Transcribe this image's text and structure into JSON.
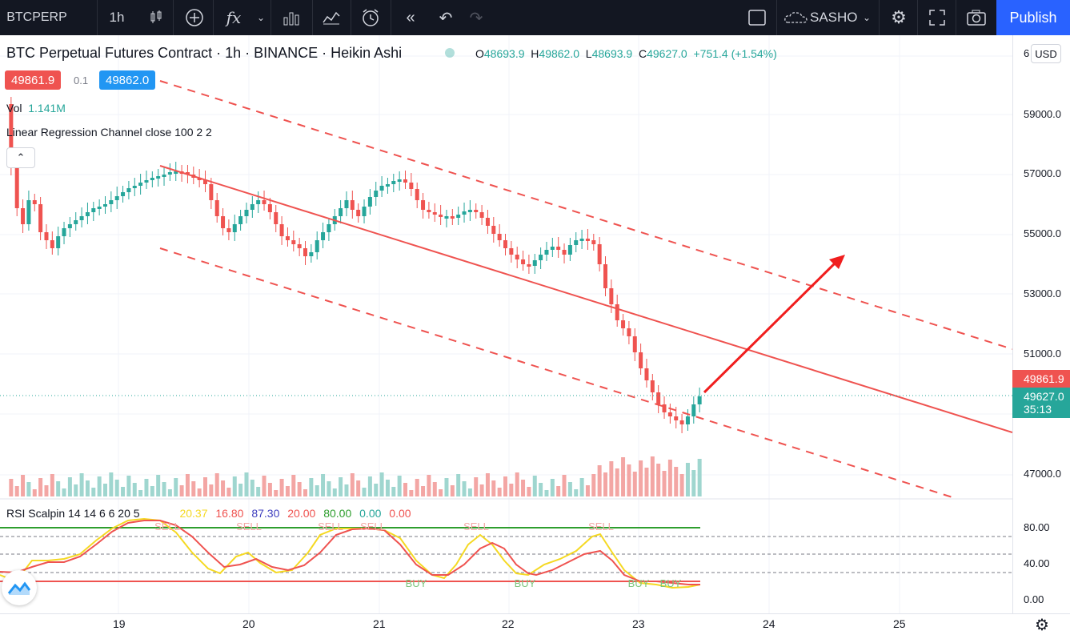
{
  "toolbar": {
    "symbol": "BTCPERP",
    "interval": "1h",
    "user": "SASHO",
    "publish_label": "Publish",
    "icons": [
      "candles-icon",
      "plus-circle-icon",
      "fx-icon",
      "chevron-down-icon",
      "bar-chart-icon",
      "templates-icon",
      "alert-clock-icon",
      "replay-icon",
      "undo-icon",
      "redo-icon",
      "layout-icon",
      "cloud-icon",
      "gear-icon",
      "fullscreen-icon",
      "camera-icon"
    ]
  },
  "legend": {
    "title": "BTC Perpetual Futures Contract · 1h · BINANCE · Heikin Ashi",
    "ohlc": {
      "o_label": "O",
      "o": "48693.9",
      "h_label": "H",
      "h": "49862.0",
      "l_label": "L",
      "l": "48693.9",
      "c_label": "C",
      "c": "49627.0",
      "change": "+751.4 (+1.54%)"
    },
    "sell_price": "49861.9",
    "spread": "0.1",
    "buy_price": "49862.0",
    "vol_label": "Vol",
    "vol_value": "1.141M",
    "indicator": "Linear Regression Channel close 100 2 2"
  },
  "price_axis": {
    "currency": "USD",
    "top_partial": "6",
    "ticks": [
      "59000.0",
      "57000.0",
      "55000.0",
      "53000.0",
      "51000.0",
      "47000.0"
    ],
    "last_price_red": "49861.9",
    "last_price_green": "49627.0",
    "countdown": "35:13"
  },
  "rsi": {
    "title": "RSI Scalpin 14 14 6 6 20 5",
    "values": [
      "20.37",
      "16.80",
      "87.30",
      "20.00",
      "80.00",
      "0.00",
      "0.00"
    ],
    "ticks": [
      "80.00",
      "40.00",
      "0.00"
    ],
    "sell_label": "SELL",
    "buy_label": "BUY"
  },
  "time_axis": {
    "ticks": [
      "19",
      "20",
      "21",
      "22",
      "23",
      "24",
      "25"
    ]
  },
  "colors": {
    "up": "#26a69a",
    "down": "#ef5350",
    "blue": "#2962ff",
    "rsi_yellow": "#f5d923",
    "rsi_red": "#ef5350"
  }
}
